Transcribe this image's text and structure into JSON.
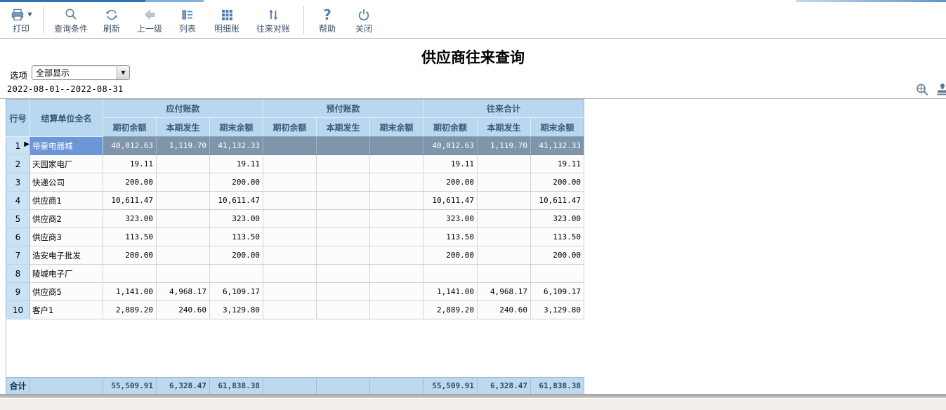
{
  "toolbar": {
    "buttons": [
      {
        "label": "打印",
        "icon": "printer-icon"
      },
      {
        "label": "查询条件",
        "icon": "search-icon"
      },
      {
        "label": "刷新",
        "icon": "refresh-icon"
      },
      {
        "label": "上一级",
        "icon": "arrow-left-icon",
        "disabled": true
      },
      {
        "label": "列表",
        "icon": "list-icon"
      },
      {
        "label": "明细账",
        "icon": "grid-icon"
      },
      {
        "label": "往来对账",
        "icon": "up-down-arrows-icon"
      },
      {
        "label": "帮助",
        "icon": "help-icon"
      },
      {
        "label": "关闭",
        "icon": "power-icon"
      }
    ],
    "icons": {
      "caret": "▼",
      "help_glyph": "?",
      "marker": "▶"
    }
  },
  "page": {
    "title": "供应商往来查询",
    "options_label": "选项",
    "options_value": "全部显示",
    "date_range": "2022-08-01--2022-08-31",
    "corner_icons": [
      "zoom-icon",
      "stamp-icon"
    ]
  },
  "table": {
    "header": {
      "row_no": "行号",
      "unit_name": "结算单位全名",
      "groups": [
        {
          "label": "应付账款",
          "cols": [
            "期初余额",
            "本期发生",
            "期末余额"
          ]
        },
        {
          "label": "预付账款",
          "cols": [
            "期初余额",
            "本期发生",
            "期末余额"
          ]
        },
        {
          "label": "往来合计",
          "cols": [
            "期初余额",
            "本期发生",
            "期末余额"
          ]
        }
      ]
    },
    "rows": [
      {
        "no": "1",
        "name": "帝豪电器城",
        "selected": true,
        "ap": [
          "40,012.63",
          "1,119.70",
          "41,132.33"
        ],
        "prepaid": [
          "",
          "",
          ""
        ],
        "total": [
          "40,012.63",
          "1,119.70",
          "41,132.33"
        ]
      },
      {
        "no": "2",
        "name": "天园家电厂",
        "ap": [
          "19.11",
          "",
          "19.11"
        ],
        "prepaid": [
          "",
          "",
          ""
        ],
        "total": [
          "19.11",
          "",
          "19.11"
        ]
      },
      {
        "no": "3",
        "name": "快递公司",
        "ap": [
          "200.00",
          "",
          "200.00"
        ],
        "prepaid": [
          "",
          "",
          ""
        ],
        "total": [
          "200.00",
          "",
          "200.00"
        ]
      },
      {
        "no": "4",
        "name": "供应商1",
        "ap": [
          "10,611.47",
          "",
          "10,611.47"
        ],
        "prepaid": [
          "",
          "",
          ""
        ],
        "total": [
          "10,611.47",
          "",
          "10,611.47"
        ]
      },
      {
        "no": "5",
        "name": "供应商2",
        "ap": [
          "323.00",
          "",
          "323.00"
        ],
        "prepaid": [
          "",
          "",
          ""
        ],
        "total": [
          "323.00",
          "",
          "323.00"
        ]
      },
      {
        "no": "6",
        "name": "供应商3",
        "ap": [
          "113.50",
          "",
          "113.50"
        ],
        "prepaid": [
          "",
          "",
          ""
        ],
        "total": [
          "113.50",
          "",
          "113.50"
        ]
      },
      {
        "no": "7",
        "name": "浩安电子批发",
        "ap": [
          "200.00",
          "",
          "200.00"
        ],
        "prepaid": [
          "",
          "",
          ""
        ],
        "total": [
          "200.00",
          "",
          "200.00"
        ]
      },
      {
        "no": "8",
        "name": "陵城电子厂",
        "ap": [
          "",
          "",
          ""
        ],
        "prepaid": [
          "",
          "",
          ""
        ],
        "total": [
          "",
          "",
          ""
        ]
      },
      {
        "no": "9",
        "name": "供应商5",
        "ap": [
          "1,141.00",
          "4,968.17",
          "6,109.17"
        ],
        "prepaid": [
          "",
          "",
          ""
        ],
        "total": [
          "1,141.00",
          "4,968.17",
          "6,109.17"
        ]
      },
      {
        "no": "10",
        "name": "客户1",
        "ap": [
          "2,889.20",
          "240.60",
          "3,129.80"
        ],
        "prepaid": [
          "",
          "",
          ""
        ],
        "total": [
          "2,889.20",
          "240.60",
          "3,129.80"
        ]
      }
    ],
    "footer": {
      "label": "合计",
      "name": "",
      "ap": [
        "55,509.91",
        "6,328.47",
        "61,838.38"
      ],
      "prepaid": [
        "",
        "",
        ""
      ],
      "total": [
        "55,509.91",
        "6,328.47",
        "61,838.38"
      ]
    }
  },
  "colors": {
    "header_bg": "#b9d7ee",
    "header_text": "#3c5a76",
    "rownum_bg": "#c9e2f6",
    "selected_name_bg": "#6d96d8",
    "selected_amount_bg": "#7e95ab",
    "footer_bg": "#bdd9ef",
    "toolbar_icon": "#5d83ab",
    "statusbar_bg": "#f2eeea"
  }
}
